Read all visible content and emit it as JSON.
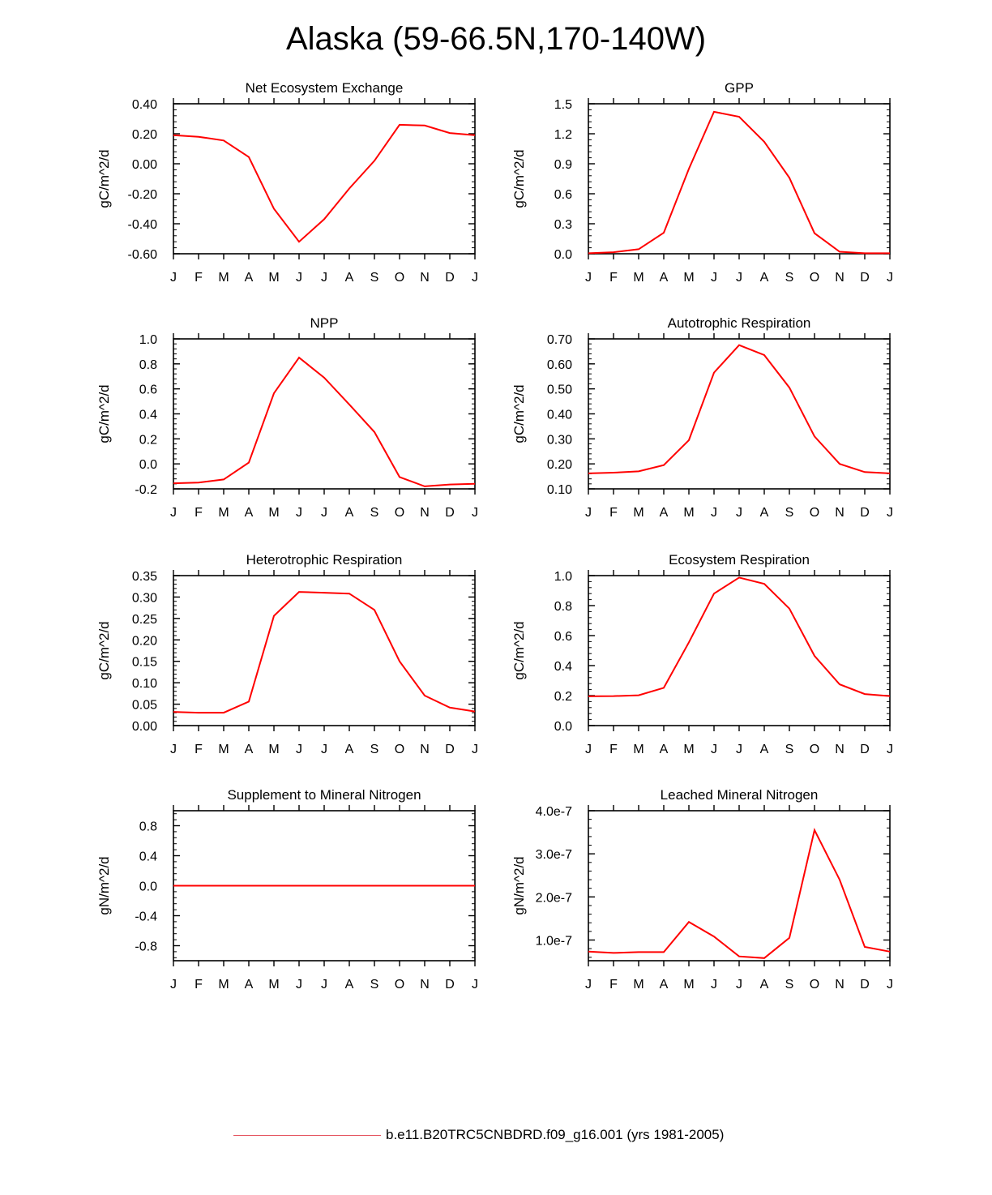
{
  "title": "Alaska (59-66.5N,170-140W)",
  "series_color": "#ff0000",
  "legend": {
    "label": "b.e11.B20TRC5CNBDRD.f09_g16.001 (yrs 1981-2005)",
    "color": "#e4535f"
  },
  "chart_data": [
    {
      "type": "line",
      "title": "Net Ecosystem Exchange",
      "ylabel": "gC/m^2/d",
      "ylim": [
        -0.6,
        0.4
      ],
      "yticks": [
        -0.6,
        -0.4,
        -0.2,
        0.0,
        0.2,
        0.4
      ],
      "ytick_labels": [
        "-0.60",
        "-0.40",
        "-0.20",
        "0.00",
        "0.20",
        "0.40"
      ],
      "x": [
        "J",
        "F",
        "M",
        "A",
        "M",
        "J",
        "J",
        "A",
        "S",
        "O",
        "N",
        "D",
        "J"
      ],
      "values": [
        0.19,
        0.18,
        0.155,
        0.045,
        -0.3,
        -0.52,
        -0.37,
        -0.165,
        0.02,
        0.26,
        0.255,
        0.205,
        0.19
      ]
    },
    {
      "type": "line",
      "title": "GPP",
      "ylabel": "gC/m^2/d",
      "ylim": [
        0.0,
        1.5
      ],
      "yticks": [
        0.0,
        0.3,
        0.6,
        0.9,
        1.2,
        1.5
      ],
      "ytick_labels": [
        "0.0",
        "0.3",
        "0.6",
        "0.9",
        "1.2",
        "1.5"
      ],
      "x": [
        "J",
        "F",
        "M",
        "A",
        "M",
        "J",
        "J",
        "A",
        "S",
        "O",
        "N",
        "D",
        "J"
      ],
      "values": [
        0.005,
        0.015,
        0.045,
        0.21,
        0.85,
        1.42,
        1.37,
        1.12,
        0.76,
        0.205,
        0.02,
        0.005,
        0.005
      ]
    },
    {
      "type": "line",
      "title": "NPP",
      "ylabel": "gC/m^2/d",
      "ylim": [
        -0.2,
        1.0
      ],
      "yticks": [
        -0.2,
        0.0,
        0.2,
        0.4,
        0.6,
        0.8,
        1.0
      ],
      "ytick_labels": [
        "-0.2",
        "0.0",
        "0.2",
        "0.4",
        "0.6",
        "0.8",
        "1.0"
      ],
      "x": [
        "J",
        "F",
        "M",
        "A",
        "M",
        "J",
        "J",
        "A",
        "S",
        "O",
        "N",
        "D",
        "J"
      ],
      "values": [
        -0.155,
        -0.15,
        -0.125,
        0.01,
        0.565,
        0.85,
        0.69,
        0.475,
        0.255,
        -0.105,
        -0.18,
        -0.165,
        -0.16
      ]
    },
    {
      "type": "line",
      "title": "Autotrophic Respiration",
      "ylabel": "gC/m^2/d",
      "ylim": [
        0.1,
        0.7
      ],
      "yticks": [
        0.1,
        0.2,
        0.3,
        0.4,
        0.5,
        0.6,
        0.7
      ],
      "ytick_labels": [
        "0.10",
        "0.20",
        "0.30",
        "0.40",
        "0.50",
        "0.60",
        "0.70"
      ],
      "x": [
        "J",
        "F",
        "M",
        "A",
        "M",
        "J",
        "J",
        "A",
        "S",
        "O",
        "N",
        "D",
        "J"
      ],
      "values": [
        0.162,
        0.165,
        0.17,
        0.195,
        0.295,
        0.565,
        0.675,
        0.635,
        0.505,
        0.31,
        0.2,
        0.167,
        0.162
      ]
    },
    {
      "type": "line",
      "title": "Heterotrophic Respiration",
      "ylabel": "gC/m^2/d",
      "ylim": [
        0.0,
        0.35
      ],
      "yticks": [
        0.0,
        0.05,
        0.1,
        0.15,
        0.2,
        0.25,
        0.3,
        0.35
      ],
      "ytick_labels": [
        "0.00",
        "0.05",
        "0.10",
        "0.15",
        "0.20",
        "0.25",
        "0.30",
        "0.35"
      ],
      "x": [
        "J",
        "F",
        "M",
        "A",
        "M",
        "J",
        "J",
        "A",
        "S",
        "O",
        "N",
        "D",
        "J"
      ],
      "values": [
        0.032,
        0.03,
        0.03,
        0.056,
        0.256,
        0.312,
        0.31,
        0.308,
        0.27,
        0.15,
        0.07,
        0.042,
        0.033
      ]
    },
    {
      "type": "line",
      "title": "Ecosystem Respiration",
      "ylabel": "gC/m^2/d",
      "ylim": [
        0.0,
        1.0
      ],
      "yticks": [
        0.0,
        0.2,
        0.4,
        0.6,
        0.8,
        1.0
      ],
      "ytick_labels": [
        "0.0",
        "0.2",
        "0.4",
        "0.6",
        "0.8",
        "1.0"
      ],
      "x": [
        "J",
        "F",
        "M",
        "A",
        "M",
        "J",
        "J",
        "A",
        "S",
        "O",
        "N",
        "D",
        "J"
      ],
      "values": [
        0.195,
        0.197,
        0.202,
        0.252,
        0.555,
        0.88,
        0.987,
        0.945,
        0.78,
        0.465,
        0.275,
        0.21,
        0.197
      ]
    },
    {
      "type": "line",
      "title": "Supplement to Mineral Nitrogen",
      "ylabel": "gN/m^2/d",
      "ylim": [
        -1.0,
        1.0
      ],
      "yticks": [
        -0.8,
        -0.4,
        0.0,
        0.4,
        0.8
      ],
      "ytick_labels": [
        "-0.8",
        "-0.4",
        "0.0",
        "0.4",
        "0.8"
      ],
      "x": [
        "J",
        "F",
        "M",
        "A",
        "M",
        "J",
        "J",
        "A",
        "S",
        "O",
        "N",
        "D",
        "J"
      ],
      "values": [
        0,
        0,
        0,
        0,
        0,
        0,
        0,
        0,
        0,
        0,
        0,
        0,
        0
      ]
    },
    {
      "type": "line",
      "title": "Leached Mineral Nitrogen",
      "ylabel": "gN/m^2/d",
      "ylim": [
        5.2e-08,
        4e-07
      ],
      "yticks": [
        1e-07,
        2e-07,
        3e-07,
        4e-07
      ],
      "ytick_labels": [
        "1.0e-7",
        "2.0e-7",
        "3.0e-7",
        "4.0e-7"
      ],
      "x": [
        "J",
        "F",
        "M",
        "A",
        "M",
        "J",
        "J",
        "A",
        "S",
        "O",
        "N",
        "D",
        "J"
      ],
      "values": [
        7.3e-08,
        7e-08,
        7.2e-08,
        7.2e-08,
        1.42e-07,
        1.08e-07,
        6.2e-08,
        5.8e-08,
        1.05e-07,
        3.55e-07,
        2.4e-07,
        8.4e-08,
        7.3e-08
      ]
    }
  ]
}
